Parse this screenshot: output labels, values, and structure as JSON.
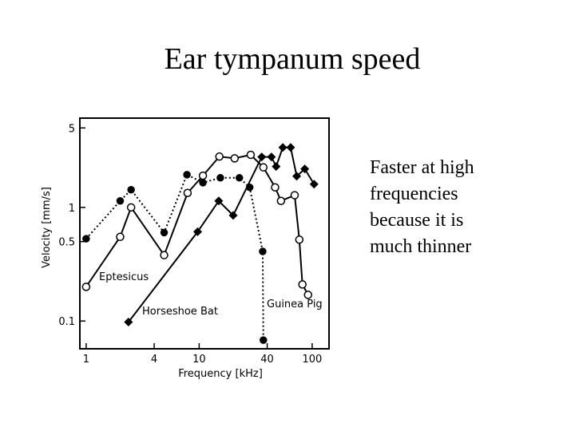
{
  "slide": {
    "title": "Ear tympanum speed",
    "body_lines": [
      "Faster at high",
      "frequencies",
      "because it is",
      "much thinner"
    ]
  },
  "chart_data": {
    "type": "line",
    "x_label": "Frequency [kHz]",
    "y_label": "Velocity [mm/s]",
    "x_log": true,
    "y_log": true,
    "xlim": [
      0.88,
      141
    ],
    "ylim": [
      0.057,
      6.1
    ],
    "xticks": [
      1,
      4,
      10,
      40,
      100
    ],
    "yticks": [
      0.1,
      0.5,
      1,
      5
    ],
    "series": [
      {
        "name": "Eptesicus",
        "color": "#000000",
        "marker": "open-circle",
        "line_style": "solid",
        "x": [
          1,
          2.0,
          2.5,
          4.9,
          7.9,
          10.8,
          15.1,
          20.6,
          28.6,
          37,
          47,
          53,
          70,
          77,
          82,
          92
        ],
        "values": [
          0.2,
          0.55,
          1.0,
          0.38,
          1.34,
          1.9,
          2.8,
          2.7,
          2.9,
          2.25,
          1.5,
          1.14,
          1.28,
          0.52,
          0.21,
          0.17
        ]
      },
      {
        "name": "Horseshoe Bat",
        "color": "#000000",
        "marker": "filled-diamond",
        "line_style": "solid",
        "x": [
          2.37,
          9.7,
          14.9,
          20,
          35.8,
          43.6,
          48,
          55,
          64.5,
          73,
          86,
          104
        ],
        "values": [
          0.098,
          0.61,
          1.14,
          0.85,
          2.78,
          2.78,
          2.29,
          3.37,
          3.37,
          1.88,
          2.18,
          1.6
        ]
      },
      {
        "name": "Guinea Pig",
        "color": "#000000",
        "marker": "filled-circle",
        "line_style": "dotted",
        "x": [
          1,
          2,
          2.5,
          4.9,
          7.8,
          10.8,
          15.4,
          22.7,
          28,
          36.5,
          37
        ],
        "values": [
          0.53,
          1.14,
          1.43,
          0.6,
          1.94,
          1.65,
          1.82,
          1.82,
          1.5,
          0.41,
          0.068
        ]
      }
    ]
  }
}
